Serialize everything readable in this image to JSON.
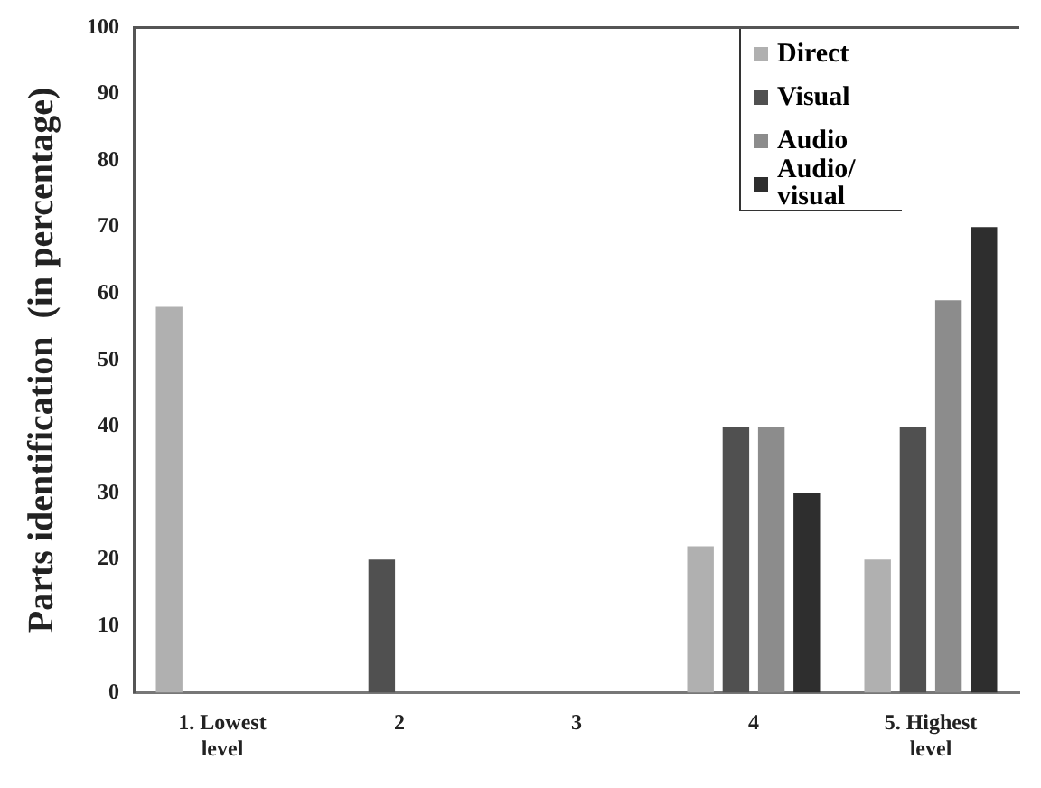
{
  "chart_data": {
    "type": "bar",
    "ylabel": "Parts identification  (in percentage)",
    "categories": [
      "1. Lowest level",
      "2",
      "3",
      "4",
      "5. Highest level"
    ],
    "series": [
      {
        "name": "Direct",
        "color": "#b0b0b0",
        "values": [
          58,
          0,
          0,
          22,
          20
        ]
      },
      {
        "name": "Visual",
        "color": "#505050",
        "values": [
          0,
          20,
          0,
          40,
          40
        ]
      },
      {
        "name": "Audio",
        "color": "#8c8c8c",
        "values": [
          0,
          0,
          0,
          40,
          59
        ]
      },
      {
        "name": "Audio/ visual",
        "color": "#2e2e2e",
        "values": [
          0,
          0,
          0,
          30,
          70
        ]
      }
    ],
    "ylim": [
      0,
      100
    ],
    "yticks": [
      0,
      10,
      20,
      30,
      40,
      50,
      60,
      70,
      80,
      90,
      100
    ],
    "grid": false,
    "legend": "top right"
  }
}
